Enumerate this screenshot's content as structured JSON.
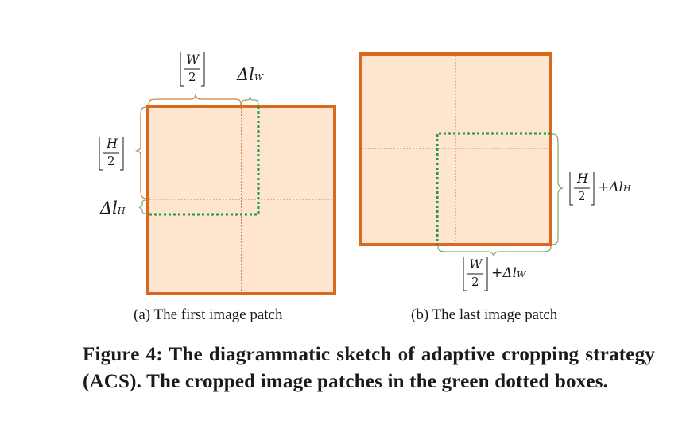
{
  "panel_a": {
    "caption": "(a) The first image patch",
    "label_top_frac": {
      "numerator": "W",
      "denominator": "2"
    },
    "label_top_delta": {
      "symbol": "Δl",
      "subscript": "W"
    },
    "label_left_frac": {
      "numerator": "H",
      "denominator": "2"
    },
    "label_left_delta": {
      "symbol": "Δl",
      "subscript": "H"
    }
  },
  "panel_b": {
    "caption": "(b) The last image patch",
    "label_right_frac": {
      "numerator": "H",
      "denominator": "2"
    },
    "label_right_delta": {
      "plus": "+",
      "symbol": "Δl",
      "subscript": "H"
    },
    "label_bottom_frac": {
      "numerator": "W",
      "denominator": "2"
    },
    "label_bottom_delta": {
      "plus": "+",
      "symbol": "Δl",
      "subscript": "W"
    }
  },
  "figure_caption": "Figure 4: The diagrammatic sketch of adaptive cropping strategy (ACS). The cropped image patches in the green dotted boxes.",
  "colors": {
    "image_fill": "#fde5cf",
    "image_border": "#d9691e",
    "crop_box": "#1f9a3a",
    "brace_orange": "#c9824a",
    "brace_green": "#8cab72",
    "dotted_center": "#c9824a"
  }
}
